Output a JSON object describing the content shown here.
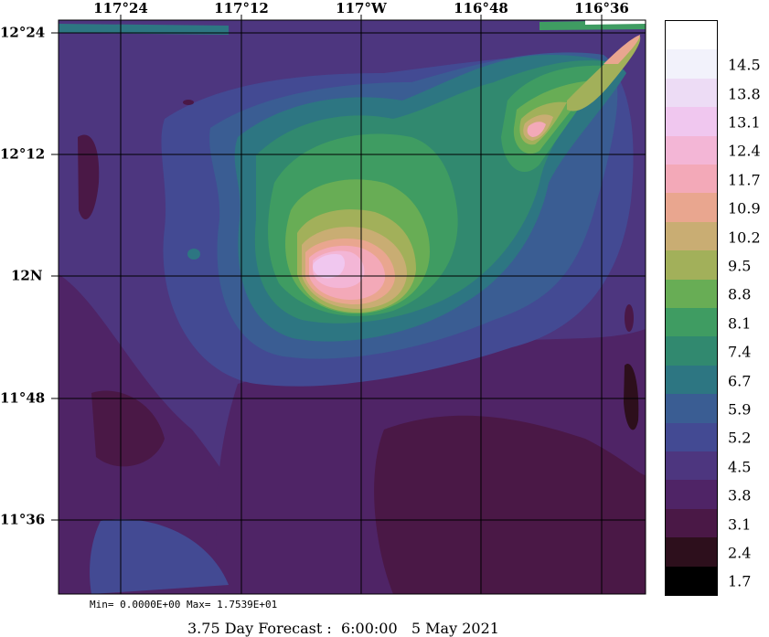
{
  "map": {
    "top_labels": [
      "117°24",
      "117°12",
      "117°W",
      "116°48",
      "116°36"
    ],
    "left_labels": [
      "12°24",
      "12°12",
      "12N",
      "11°48",
      "11°36"
    ]
  },
  "legend": {
    "levels": [
      {
        "label": "",
        "color": "#ffffff"
      },
      {
        "label": "14.5",
        "color": "#f2f2fb"
      },
      {
        "label": "13.8",
        "color": "#eddcf5"
      },
      {
        "label": "13.1",
        "color": "#f0c7ef"
      },
      {
        "label": "12.4",
        "color": "#f3b6d6"
      },
      {
        "label": "11.7",
        "color": "#f3a9b8"
      },
      {
        "label": "10.9",
        "color": "#e9a68f"
      },
      {
        "label": "10.2",
        "color": "#c9ad73"
      },
      {
        "label": "9.5",
        "color": "#a2b05a"
      },
      {
        "label": "8.8",
        "color": "#68ad55"
      },
      {
        "label": "8.1",
        "color": "#3f9c62"
      },
      {
        "label": "7.4",
        "color": "#31896f"
      },
      {
        "label": "6.7",
        "color": "#2d7682"
      },
      {
        "label": "5.9",
        "color": "#3a5d93"
      },
      {
        "label": "5.2",
        "color": "#434a93"
      },
      {
        "label": "4.5",
        "color": "#4d367f"
      },
      {
        "label": "3.8",
        "color": "#4f2466"
      },
      {
        "label": "3.1",
        "color": "#4a1846"
      },
      {
        "label": "2.4",
        "color": "#2d0f1c"
      },
      {
        "label": "1.7",
        "color": "#000000"
      }
    ]
  },
  "stats": {
    "text": "Min= 0.0000E+00  Max= 1.7539E+01"
  },
  "caption": {
    "text": "3.75 Day Forecast :  6:00:00   5 May 2021"
  }
}
